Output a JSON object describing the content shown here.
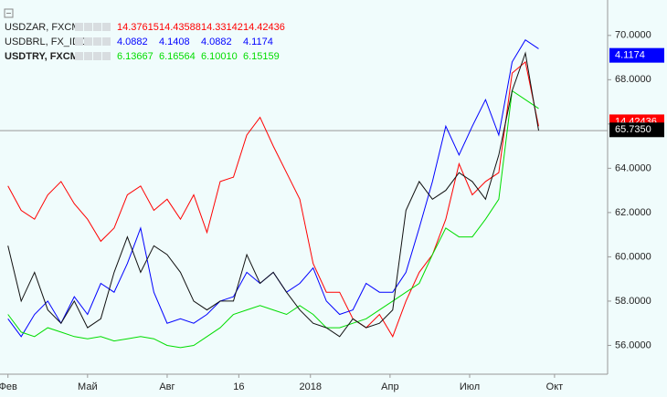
{
  "chart_data": {
    "type": "line",
    "x": [
      0,
      0.5,
      1,
      1.5,
      2,
      2.5,
      3,
      3.5,
      4,
      4.5,
      5,
      5.5,
      6,
      6.5,
      7,
      7.5,
      8,
      8.5,
      9,
      9.5,
      10,
      10.5,
      11,
      11.5,
      12,
      12.5,
      13,
      13.5,
      14,
      14.5,
      15,
      15.5,
      16,
      16.5,
      17,
      17.5,
      18,
      18.5,
      19,
      19.5,
      20
    ],
    "xlim": [
      -0.3,
      22.6
    ],
    "xticks": [
      {
        "value": 0,
        "label": "Фев"
      },
      {
        "value": 3,
        "label": "Май"
      },
      {
        "value": 6,
        "label": "Авг"
      },
      {
        "value": 8.7,
        "label": "16"
      },
      {
        "value": 11.4,
        "label": "2018"
      },
      {
        "value": 14.4,
        "label": "Апр"
      },
      {
        "value": 17.4,
        "label": "Июл"
      },
      {
        "value": 20.6,
        "label": "Окт"
      }
    ],
    "ylim": [
      54.7,
      71.6
    ],
    "yticks": [
      {
        "value": 56,
        "label": "56.0000"
      },
      {
        "value": 58,
        "label": "58.0000"
      },
      {
        "value": 60,
        "label": "60.0000"
      },
      {
        "value": 62,
        "label": "62.0000"
      },
      {
        "value": 64,
        "label": "64.0000"
      },
      {
        "value": 66,
        "label": "66.0000"
      },
      {
        "value": 68,
        "label": "68.0000"
      },
      {
        "value": 70,
        "label": "70.0000"
      }
    ],
    "series": [
      {
        "name": "USDZAR, FXCM",
        "color": "#ff0000",
        "quotes": [
          "14.37615",
          "14.43588",
          "14.33142",
          "14.42436"
        ],
        "values": [
          63.2,
          62.1,
          61.7,
          62.8,
          63.4,
          62.4,
          61.7,
          60.7,
          61.3,
          62.8,
          63.2,
          62.1,
          62.6,
          61.7,
          62.8,
          61.1,
          63.4,
          63.6,
          65.5,
          66.3,
          65.0,
          63.8,
          62.6,
          59.7,
          58.4,
          58.4,
          57.2,
          56.8,
          57.4,
          56.4,
          58.0,
          59.3,
          60.1,
          61.7,
          64.2,
          62.8,
          63.4,
          63.8,
          68.3,
          68.8,
          65.9
        ]
      },
      {
        "name": "USDBRL, FX_IDC",
        "color": "#0000ff",
        "quotes": [
          "4.0882",
          "4.1408",
          "4.0882",
          "4.1174"
        ],
        "values": [
          57.2,
          56.4,
          57.4,
          58.0,
          57.0,
          58.2,
          57.4,
          58.8,
          58.4,
          59.7,
          61.3,
          58.4,
          57.0,
          57.2,
          57.0,
          57.4,
          58.0,
          58.2,
          59.3,
          58.8,
          59.3,
          58.4,
          58.8,
          59.5,
          58.0,
          57.4,
          57.6,
          58.8,
          58.4,
          58.4,
          59.3,
          61.3,
          63.4,
          65.9,
          64.6,
          65.9,
          67.1,
          65.5,
          68.8,
          69.8,
          69.4
        ]
      },
      {
        "name": "USDTRY, FXCM",
        "color": "#00dd00",
        "quotes": [
          "6.13667",
          "6.16564",
          "6.10010",
          "6.15159"
        ],
        "values": [
          57.4,
          56.6,
          56.4,
          56.8,
          56.6,
          56.4,
          56.3,
          56.4,
          56.2,
          56.3,
          56.4,
          56.3,
          56.0,
          55.9,
          56.0,
          56.4,
          56.8,
          57.4,
          57.6,
          57.8,
          57.6,
          57.4,
          57.8,
          57.4,
          56.8,
          56.8,
          57.0,
          57.2,
          57.6,
          58.0,
          58.4,
          58.8,
          60.1,
          61.3,
          60.9,
          60.9,
          61.7,
          62.6,
          67.5,
          67.1,
          66.7
        ]
      },
      {
        "color": "#111111",
        "values": [
          60.5,
          58.0,
          59.3,
          57.6,
          57.0,
          58.0,
          56.8,
          57.2,
          59.3,
          60.9,
          59.3,
          60.5,
          60.1,
          59.3,
          58.0,
          57.6,
          58.0,
          58.0,
          60.1,
          58.8,
          59.3,
          58.4,
          57.6,
          57.0,
          56.8,
          56.4,
          57.2,
          56.8,
          57.0,
          57.6,
          62.1,
          63.4,
          62.6,
          63.0,
          63.8,
          63.4,
          62.6,
          64.6,
          67.5,
          69.2,
          65.7
        ]
      }
    ],
    "price_tags": [
      {
        "label": "4.1174",
        "value": 69.1,
        "color": "#0000ff"
      },
      {
        "label": "14.42436",
        "value": 66.1,
        "color": "#ff0000"
      },
      {
        "label": "65.7350",
        "value": 65.735,
        "color": "#000000"
      }
    ]
  }
}
